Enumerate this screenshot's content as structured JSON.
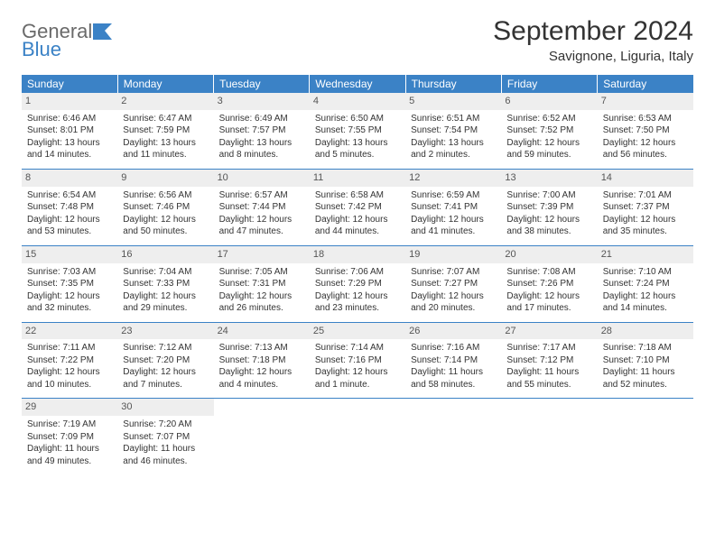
{
  "logo": {
    "word1": "General",
    "word2": "Blue"
  },
  "title": "September 2024",
  "subtitle": "Savignone, Liguria, Italy",
  "colors": {
    "header_blue": "#3b82c6",
    "daynum_bg": "#eeeeee",
    "text": "#333333",
    "logo_gray": "#6a6a6a"
  },
  "day_headers": [
    "Sunday",
    "Monday",
    "Tuesday",
    "Wednesday",
    "Thursday",
    "Friday",
    "Saturday"
  ],
  "weeks": [
    [
      {
        "n": "1",
        "sr": "Sunrise: 6:46 AM",
        "ss": "Sunset: 8:01 PM",
        "dl": "Daylight: 13 hours and 14 minutes."
      },
      {
        "n": "2",
        "sr": "Sunrise: 6:47 AM",
        "ss": "Sunset: 7:59 PM",
        "dl": "Daylight: 13 hours and 11 minutes."
      },
      {
        "n": "3",
        "sr": "Sunrise: 6:49 AM",
        "ss": "Sunset: 7:57 PM",
        "dl": "Daylight: 13 hours and 8 minutes."
      },
      {
        "n": "4",
        "sr": "Sunrise: 6:50 AM",
        "ss": "Sunset: 7:55 PM",
        "dl": "Daylight: 13 hours and 5 minutes."
      },
      {
        "n": "5",
        "sr": "Sunrise: 6:51 AM",
        "ss": "Sunset: 7:54 PM",
        "dl": "Daylight: 13 hours and 2 minutes."
      },
      {
        "n": "6",
        "sr": "Sunrise: 6:52 AM",
        "ss": "Sunset: 7:52 PM",
        "dl": "Daylight: 12 hours and 59 minutes."
      },
      {
        "n": "7",
        "sr": "Sunrise: 6:53 AM",
        "ss": "Sunset: 7:50 PM",
        "dl": "Daylight: 12 hours and 56 minutes."
      }
    ],
    [
      {
        "n": "8",
        "sr": "Sunrise: 6:54 AM",
        "ss": "Sunset: 7:48 PM",
        "dl": "Daylight: 12 hours and 53 minutes."
      },
      {
        "n": "9",
        "sr": "Sunrise: 6:56 AM",
        "ss": "Sunset: 7:46 PM",
        "dl": "Daylight: 12 hours and 50 minutes."
      },
      {
        "n": "10",
        "sr": "Sunrise: 6:57 AM",
        "ss": "Sunset: 7:44 PM",
        "dl": "Daylight: 12 hours and 47 minutes."
      },
      {
        "n": "11",
        "sr": "Sunrise: 6:58 AM",
        "ss": "Sunset: 7:42 PM",
        "dl": "Daylight: 12 hours and 44 minutes."
      },
      {
        "n": "12",
        "sr": "Sunrise: 6:59 AM",
        "ss": "Sunset: 7:41 PM",
        "dl": "Daylight: 12 hours and 41 minutes."
      },
      {
        "n": "13",
        "sr": "Sunrise: 7:00 AM",
        "ss": "Sunset: 7:39 PM",
        "dl": "Daylight: 12 hours and 38 minutes."
      },
      {
        "n": "14",
        "sr": "Sunrise: 7:01 AM",
        "ss": "Sunset: 7:37 PM",
        "dl": "Daylight: 12 hours and 35 minutes."
      }
    ],
    [
      {
        "n": "15",
        "sr": "Sunrise: 7:03 AM",
        "ss": "Sunset: 7:35 PM",
        "dl": "Daylight: 12 hours and 32 minutes."
      },
      {
        "n": "16",
        "sr": "Sunrise: 7:04 AM",
        "ss": "Sunset: 7:33 PM",
        "dl": "Daylight: 12 hours and 29 minutes."
      },
      {
        "n": "17",
        "sr": "Sunrise: 7:05 AM",
        "ss": "Sunset: 7:31 PM",
        "dl": "Daylight: 12 hours and 26 minutes."
      },
      {
        "n": "18",
        "sr": "Sunrise: 7:06 AM",
        "ss": "Sunset: 7:29 PM",
        "dl": "Daylight: 12 hours and 23 minutes."
      },
      {
        "n": "19",
        "sr": "Sunrise: 7:07 AM",
        "ss": "Sunset: 7:27 PM",
        "dl": "Daylight: 12 hours and 20 minutes."
      },
      {
        "n": "20",
        "sr": "Sunrise: 7:08 AM",
        "ss": "Sunset: 7:26 PM",
        "dl": "Daylight: 12 hours and 17 minutes."
      },
      {
        "n": "21",
        "sr": "Sunrise: 7:10 AM",
        "ss": "Sunset: 7:24 PM",
        "dl": "Daylight: 12 hours and 14 minutes."
      }
    ],
    [
      {
        "n": "22",
        "sr": "Sunrise: 7:11 AM",
        "ss": "Sunset: 7:22 PM",
        "dl": "Daylight: 12 hours and 10 minutes."
      },
      {
        "n": "23",
        "sr": "Sunrise: 7:12 AM",
        "ss": "Sunset: 7:20 PM",
        "dl": "Daylight: 12 hours and 7 minutes."
      },
      {
        "n": "24",
        "sr": "Sunrise: 7:13 AM",
        "ss": "Sunset: 7:18 PM",
        "dl": "Daylight: 12 hours and 4 minutes."
      },
      {
        "n": "25",
        "sr": "Sunrise: 7:14 AM",
        "ss": "Sunset: 7:16 PM",
        "dl": "Daylight: 12 hours and 1 minute."
      },
      {
        "n": "26",
        "sr": "Sunrise: 7:16 AM",
        "ss": "Sunset: 7:14 PM",
        "dl": "Daylight: 11 hours and 58 minutes."
      },
      {
        "n": "27",
        "sr": "Sunrise: 7:17 AM",
        "ss": "Sunset: 7:12 PM",
        "dl": "Daylight: 11 hours and 55 minutes."
      },
      {
        "n": "28",
        "sr": "Sunrise: 7:18 AM",
        "ss": "Sunset: 7:10 PM",
        "dl": "Daylight: 11 hours and 52 minutes."
      }
    ],
    [
      {
        "n": "29",
        "sr": "Sunrise: 7:19 AM",
        "ss": "Sunset: 7:09 PM",
        "dl": "Daylight: 11 hours and 49 minutes."
      },
      {
        "n": "30",
        "sr": "Sunrise: 7:20 AM",
        "ss": "Sunset: 7:07 PM",
        "dl": "Daylight: 11 hours and 46 minutes."
      },
      null,
      null,
      null,
      null,
      null
    ]
  ]
}
